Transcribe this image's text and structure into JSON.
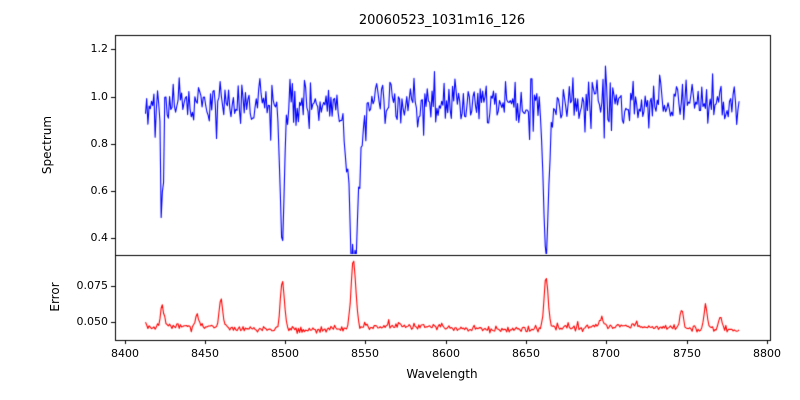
{
  "chart_data": {
    "type": "line",
    "title": "20060523_1031m16_126",
    "xlabel": "Wavelength",
    "grid": false,
    "legend_position": "none",
    "xlim": [
      8394,
      8802
    ],
    "x_ticks": {
      "values": [
        8400,
        8450,
        8500,
        8550,
        8600,
        8650,
        8700,
        8750,
        8800
      ],
      "labels": [
        "8400",
        "8450",
        "8500",
        "8550",
        "8600",
        "8650",
        "8700",
        "8750",
        "8800"
      ]
    },
    "axis_color": "#000000",
    "subplots": [
      {
        "name": "spectrum",
        "ylabel": "Spectrum",
        "ylim": [
          0.33,
          1.26
        ],
        "y_ticks": {
          "values": [
            0.4,
            0.6,
            0.8,
            1.0,
            1.2
          ],
          "labels": [
            "0.4",
            "0.6",
            "0.8",
            "1.0",
            "1.2"
          ]
        },
        "line_color": "#0000ff",
        "series": {
          "x_start": 8413,
          "x_end": 8783,
          "step": 0.75,
          "continuum": 0.975,
          "noise_sigma": 0.05,
          "spike_prob": 0.05,
          "spike_scale": 0.1,
          "absorption_lines": [
            {
              "center": 8423.5,
              "depth": 0.4,
              "sigma": 0.9
            },
            {
              "center": 8498.3,
              "depth": 0.53,
              "sigma": 1.4
            },
            {
              "center": 8542.5,
              "depth": 0.6,
              "sigma": 2.6
            },
            {
              "center": 8542.5,
              "depth": 0.12,
              "sigma": 6.0
            },
            {
              "center": 8662.5,
              "depth": 0.58,
              "sigma": 1.8
            }
          ]
        }
      },
      {
        "name": "error",
        "ylabel": "Error",
        "ylim": [
          0.037,
          0.097
        ],
        "y_ticks": {
          "values": [
            0.05,
            0.075
          ],
          "labels": [
            "0.050",
            "0.075"
          ]
        },
        "line_color": "#ff0000",
        "series": {
          "x_start": 8413,
          "x_end": 8783,
          "step": 0.75,
          "baseline": 0.0455,
          "noise_sigma": 0.0012,
          "spike_prob": 0.06,
          "spike_scale": 0.004,
          "peaks": [
            {
              "center": 8423.5,
              "height": 0.013,
              "sigma": 1.2
            },
            {
              "center": 8445.0,
              "height": 0.009,
              "sigma": 1.0
            },
            {
              "center": 8460.0,
              "height": 0.02,
              "sigma": 1.0
            },
            {
              "center": 8498.3,
              "height": 0.033,
              "sigma": 1.3
            },
            {
              "center": 8542.5,
              "height": 0.047,
              "sigma": 1.5
            },
            {
              "center": 8662.5,
              "height": 0.036,
              "sigma": 1.3
            },
            {
              "center": 8697.0,
              "height": 0.006,
              "sigma": 1.2
            },
            {
              "center": 8747.0,
              "height": 0.012,
              "sigma": 1.2
            },
            {
              "center": 8762.0,
              "height": 0.018,
              "sigma": 1.0
            },
            {
              "center": 8771.0,
              "height": 0.01,
              "sigma": 1.0
            }
          ]
        }
      }
    ]
  }
}
